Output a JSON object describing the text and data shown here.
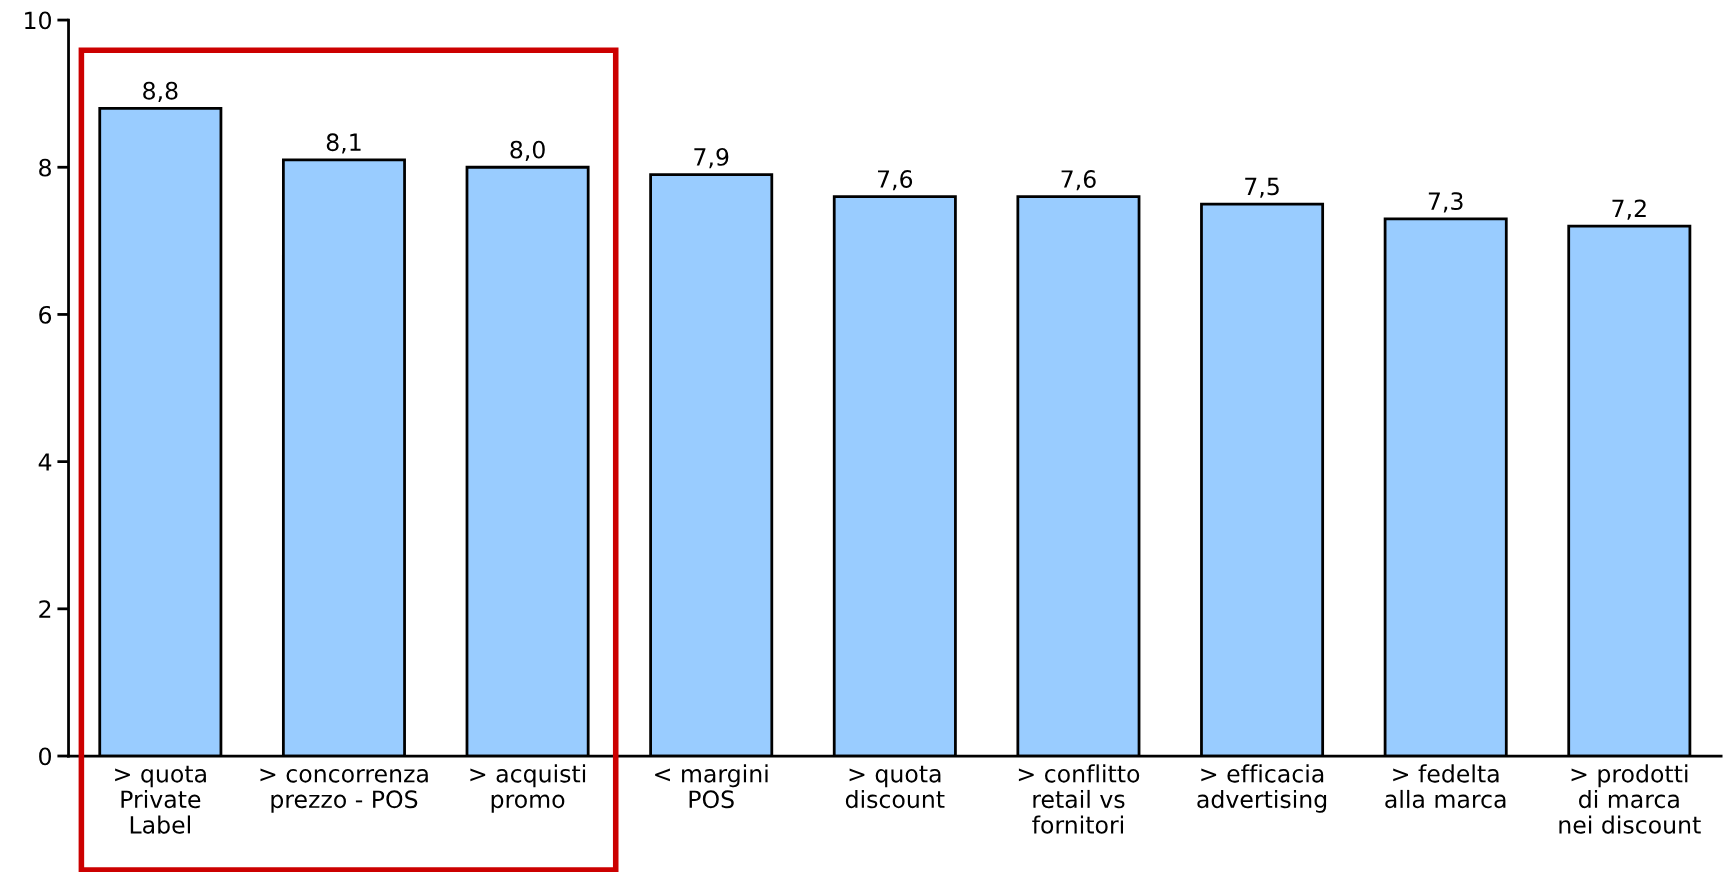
{
  "chart_data": {
    "type": "bar",
    "categories": [
      "> quota\nPrivate\nLabel",
      "> concorrenza\nprezzo - POS",
      "> acquisti\npromo",
      "< margini\nPOS",
      "> quota\ndiscount",
      "> conflitto\nretail vs\nfornitori",
      "> efficacia\nadvertising",
      "> fedelta\nalla marca",
      "> prodotti\ndi marca\nnei discount"
    ],
    "values": [
      8.8,
      8.1,
      8.0,
      7.9,
      7.6,
      7.6,
      7.5,
      7.3,
      7.2
    ],
    "value_labels": [
      "8,8",
      "8,1",
      "8,0",
      "7,9",
      "7,6",
      "7,6",
      "7,5",
      "7,3",
      "7,2"
    ],
    "color": "#99ccff",
    "ylim": [
      0,
      10
    ],
    "yticks": [
      0,
      2,
      4,
      6,
      8,
      10
    ]
  }
}
